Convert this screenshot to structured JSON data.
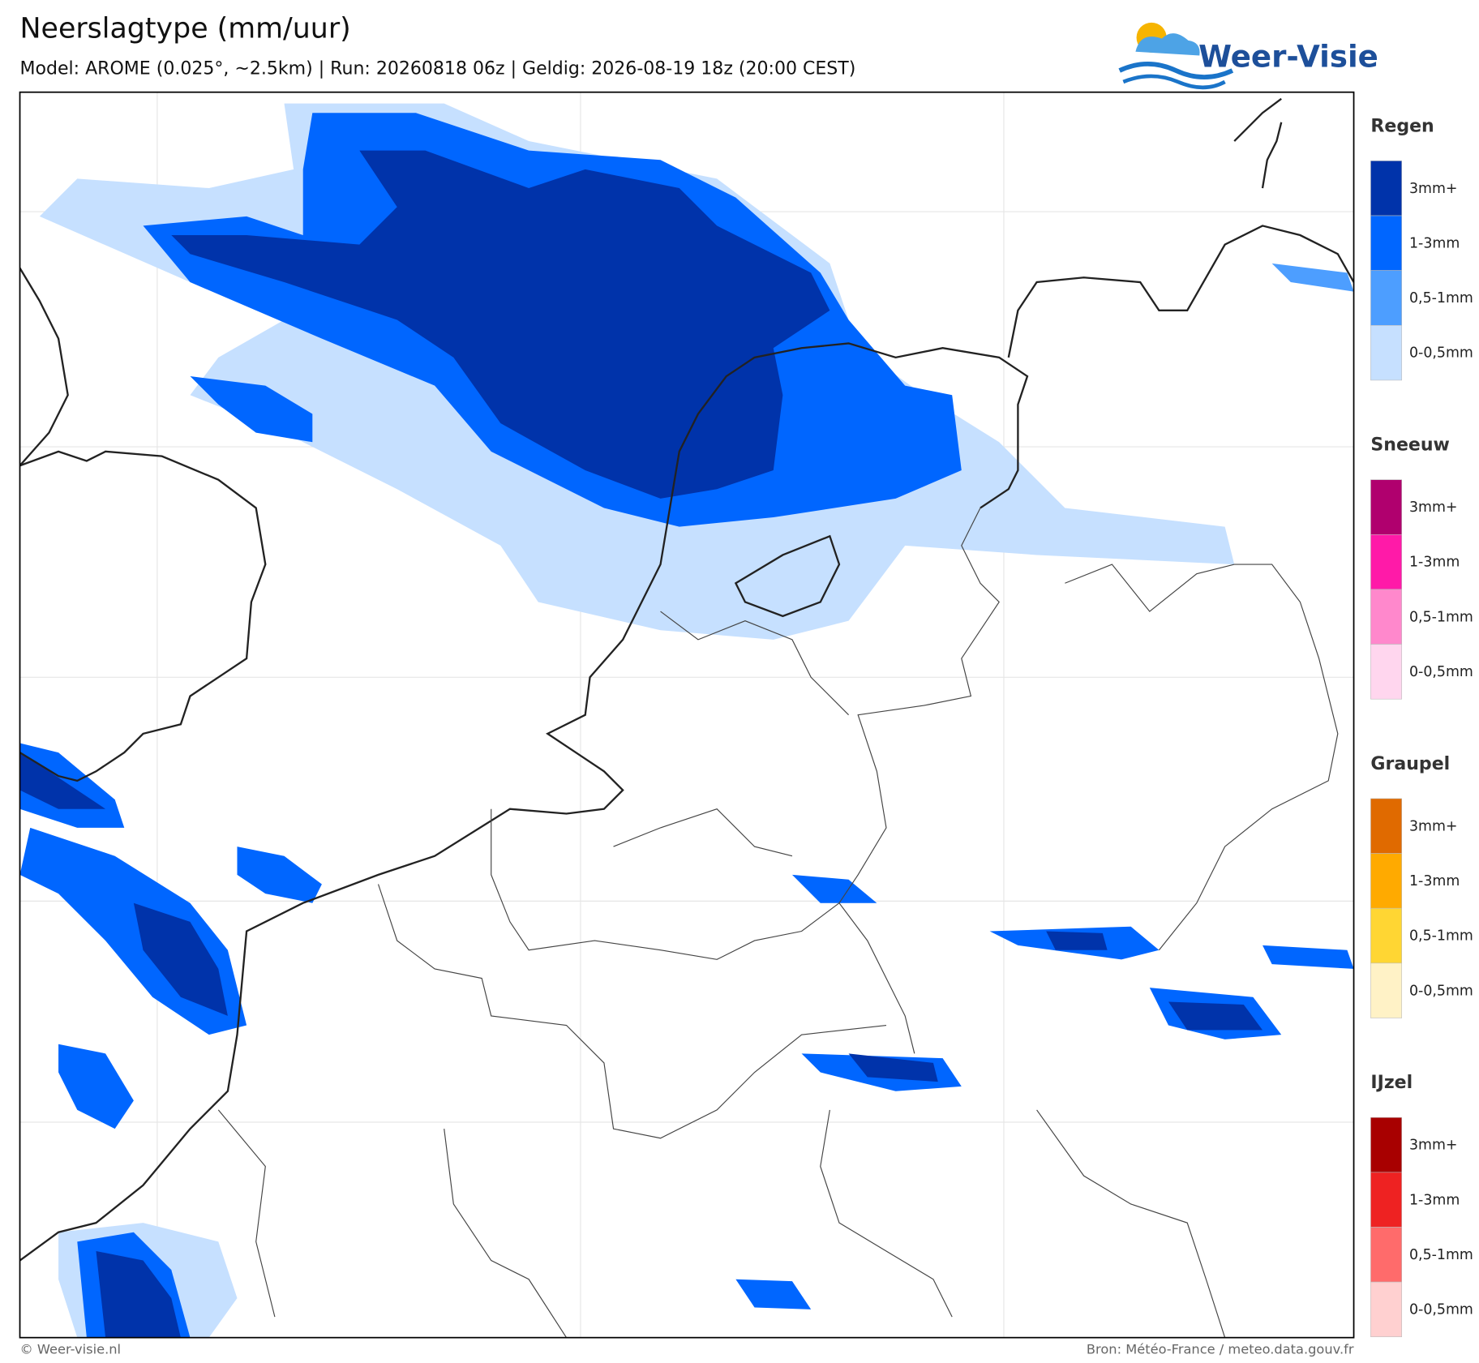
{
  "header": {
    "title": "Neerslagtype (mm/uur)",
    "subtitle": "Model: AROME (0.025°, ~2.5km)  |  Run: 20260818 06z  |  Geldig: 2026-08-19 18z (20:00 CEST)",
    "logo": "Weer-Visie"
  },
  "legend": [
    {
      "title": "Regen",
      "labels": [
        "3mm+",
        "1-3mm",
        "0,5-1mm",
        "0-0,5mm"
      ],
      "colors": [
        "#0033aa",
        "#0066ff",
        "#4d9eff",
        "#c6e0ff"
      ]
    },
    {
      "title": "Sneeuw",
      "labels": [
        "3mm+",
        "1-3mm",
        "0,5-1mm",
        "0-0,5mm"
      ],
      "colors": [
        "#b0006e",
        "#ff1aa8",
        "#ff88cc",
        "#ffd6ee"
      ]
    },
    {
      "title": "Graupel",
      "labels": [
        "3mm+",
        "1-3mm",
        "0,5-1mm",
        "0-0,5mm"
      ],
      "colors": [
        "#e06a00",
        "#ffaa00",
        "#ffd633",
        "#fff2c6"
      ]
    },
    {
      "title": "IJzel",
      "labels": [
        "3mm+",
        "1-3mm",
        "0,5-1mm",
        "0-0,5mm"
      ],
      "colors": [
        "#a80000",
        "#ee2222",
        "#ff6b6b",
        "#ffd0d0"
      ]
    }
  ],
  "footer": {
    "copyright": "© Weer-visie.nl",
    "source": "Bron: Météo-France / meteo.data.gouv.fr"
  }
}
